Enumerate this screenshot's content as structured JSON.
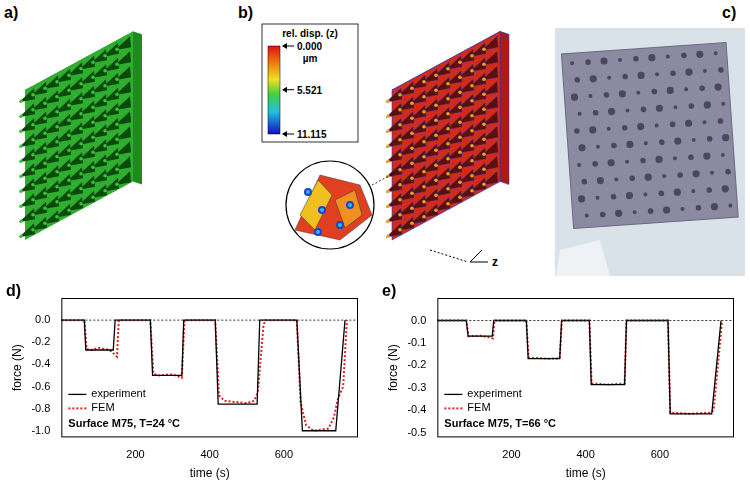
{
  "panels": {
    "a": {
      "label": "a)"
    },
    "b": {
      "label": "b)",
      "axis_label": "z",
      "color_bar": {
        "title": "rel. disp. (z)",
        "unit": "µm",
        "range": [
          0,
          11.115
        ],
        "ticks": [
          {
            "value": 0,
            "label": "0.000"
          },
          {
            "value": 5.521,
            "label": "5.521"
          },
          {
            "value": 11.115,
            "label": "11.115"
          }
        ]
      }
    },
    "c": {
      "label": "c)"
    }
  },
  "chart_data": [
    {
      "type": "line",
      "panel": "d)",
      "annotation": "Surface M75, T=24 °C",
      "x_label": "time (s)",
      "y_label": "force (N)",
      "xlim": [
        0,
        800
      ],
      "xticks": [
        200,
        400,
        600
      ],
      "ylim": [
        -1.06,
        0.2
      ],
      "yticks": [
        {
          "value": -1,
          "label": "-1.0"
        },
        -0.8,
        -0.6,
        -0.4,
        -0.2,
        {
          "value": 0,
          "label": "0.0"
        }
      ],
      "legend": "lower left",
      "series": [
        {
          "name": "experiment",
          "color": "#000000",
          "line_style": "solid",
          "x": [
            0,
            62,
            66,
            140,
            145,
            240,
            246,
            325,
            330,
            415,
            423,
            528,
            535,
            635,
            650,
            740,
            765
          ],
          "values": [
            0,
            0,
            -0.27,
            -0.27,
            0,
            0,
            -0.5,
            -0.5,
            0,
            0,
            -0.76,
            -0.76,
            0,
            0,
            -1.0,
            -1.0,
            0
          ]
        },
        {
          "name": "FEM",
          "color": "#e02020",
          "line_style": "dotted",
          "x": [
            0,
            62,
            68,
            80,
            100,
            130,
            140,
            150,
            155,
            240,
            248,
            260,
            300,
            315,
            325,
            332,
            415,
            425,
            440,
            470,
            500,
            520,
            530,
            545,
            550,
            635,
            645,
            660,
            680,
            720,
            735,
            745,
            760,
            770
          ],
          "values": [
            0,
            0,
            -0.26,
            -0.27,
            -0.25,
            -0.27,
            -0.3,
            -0.33,
            0,
            0,
            -0.48,
            -0.5,
            -0.49,
            -0.51,
            -0.52,
            0,
            0,
            -0.68,
            -0.73,
            -0.74,
            -0.75,
            -0.73,
            -0.65,
            -0.05,
            0,
            0,
            -0.74,
            -0.95,
            -1.0,
            -0.98,
            -0.88,
            -0.72,
            -0.6,
            0
          ]
        }
      ]
    },
    {
      "type": "line",
      "panel": "e)",
      "annotation": "Surface M75, T=66 °C",
      "x_label": "time (s)",
      "y_label": "force (N)",
      "xlim": [
        0,
        800
      ],
      "xticks": [
        200,
        400,
        600
      ],
      "ylim": [
        -0.52,
        0.1
      ],
      "yticks": [
        -0.5,
        -0.4,
        -0.3,
        -0.2,
        -0.1,
        {
          "value": 0,
          "label": "0.0"
        }
      ],
      "legend": "lower left",
      "series": [
        {
          "name": "experiment",
          "color": "#000000",
          "line_style": "solid",
          "x": [
            0,
            78,
            83,
            148,
            152,
            240,
            245,
            330,
            335,
            410,
            415,
            505,
            510,
            622,
            628,
            740,
            765
          ],
          "values": [
            0,
            0,
            -0.07,
            -0.07,
            0,
            0,
            -0.17,
            -0.17,
            0,
            0,
            -0.285,
            -0.285,
            0,
            0,
            -0.415,
            -0.415,
            0
          ]
        },
        {
          "name": "FEM",
          "color": "#e02020",
          "line_style": "dotted",
          "x": [
            0,
            78,
            84,
            120,
            150,
            154,
            240,
            246,
            300,
            330,
            336,
            410,
            416,
            460,
            505,
            510,
            622,
            628,
            680,
            735,
            745,
            768
          ],
          "values": [
            0,
            0,
            -0.07,
            -0.068,
            -0.08,
            0,
            0,
            -0.165,
            -0.17,
            -0.168,
            0,
            0,
            -0.28,
            -0.285,
            -0.28,
            0,
            0,
            -0.41,
            -0.415,
            -0.41,
            -0.4,
            0
          ]
        }
      ]
    }
  ]
}
